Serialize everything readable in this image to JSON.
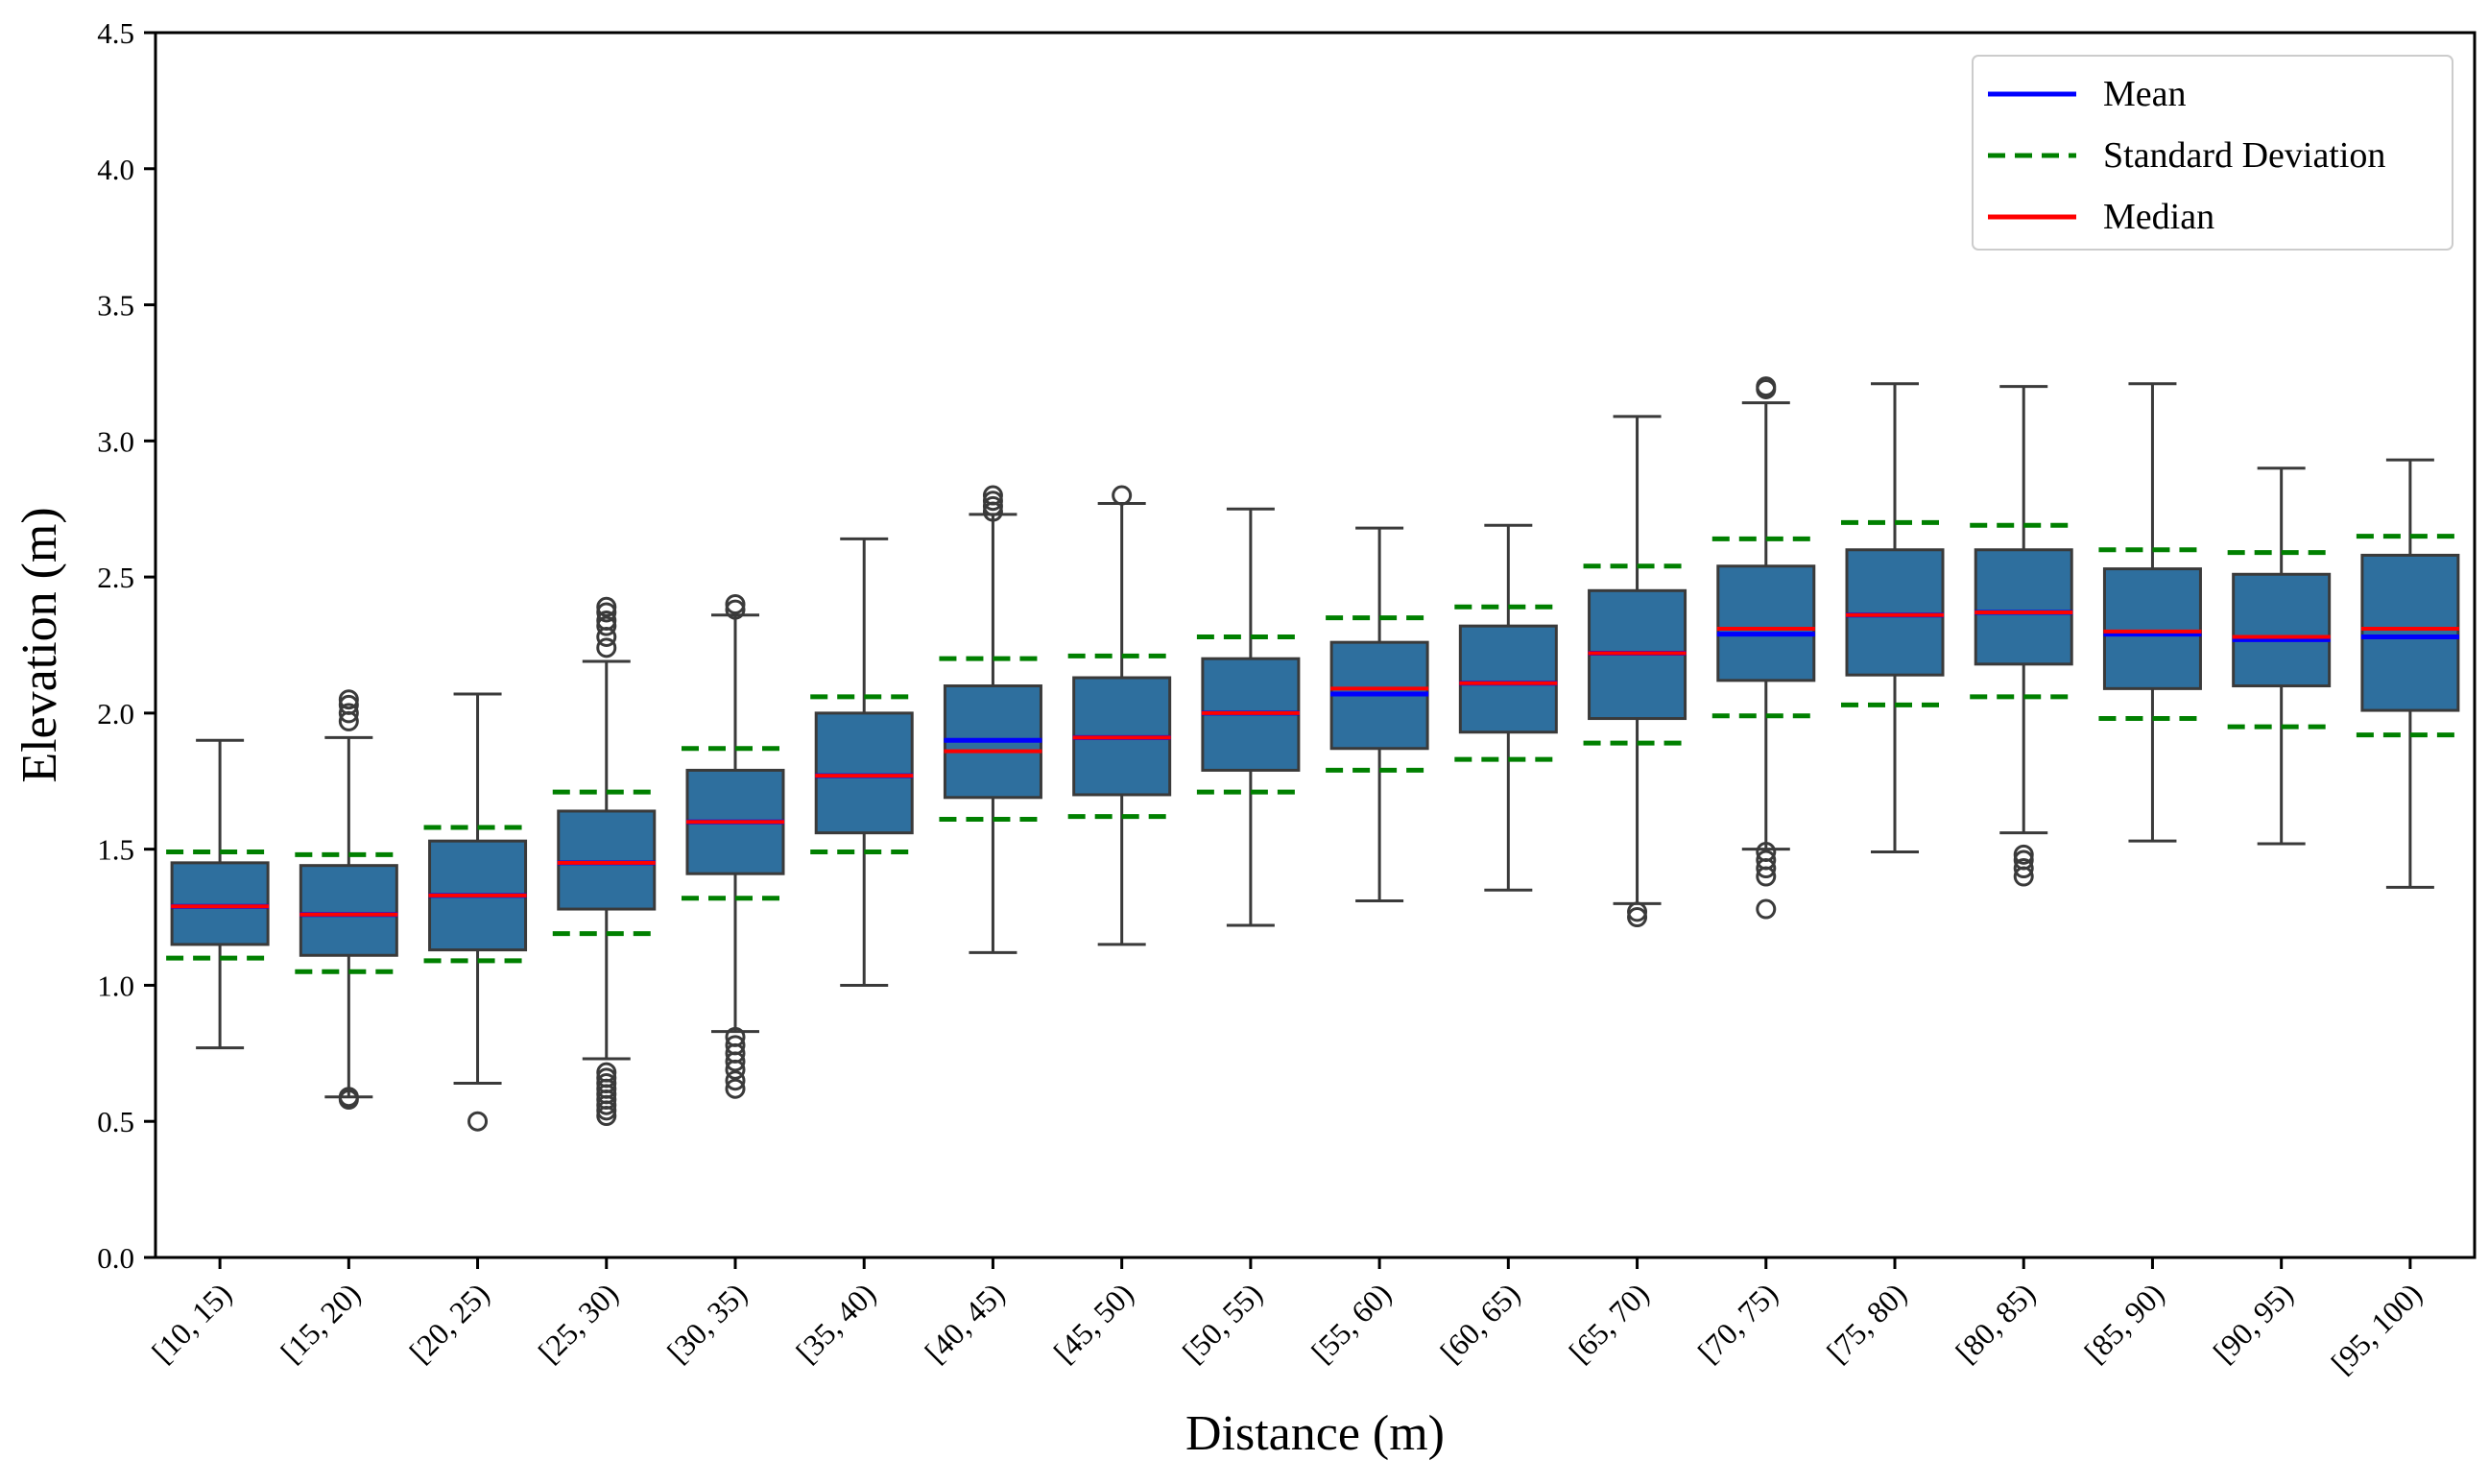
{
  "chart_data": {
    "type": "box",
    "xlabel": "Distance (m)",
    "ylabel": "Elevation (m)",
    "ylim": [
      0.0,
      4.5
    ],
    "yticks": [
      "0.0",
      "0.5",
      "1.0",
      "1.5",
      "2.0",
      "2.5",
      "3.0",
      "3.5",
      "4.0",
      "4.5"
    ],
    "legend_position": "top-right",
    "legend": [
      {
        "label": "Mean",
        "style": "solid",
        "color": "#0000ff"
      },
      {
        "label": "Standard Deviation",
        "style": "dashed",
        "color": "#008000"
      },
      {
        "label": "Median",
        "style": "solid",
        "color": "#ff0000"
      }
    ],
    "colors": {
      "box_fill": "#2e6f9e",
      "box_edge": "#3a3a3a",
      "whisker": "#3a3a3a",
      "mean": "#0000ff",
      "median": "#ff0000",
      "std": "#008000",
      "outlier": "#3a3a3a"
    },
    "categories": [
      "[10, 15)",
      "[15, 20)",
      "[20, 25)",
      "[25, 30)",
      "[30, 35)",
      "[35, 40)",
      "[40, 45)",
      "[45, 50)",
      "[50, 55)",
      "[55, 60)",
      "[60, 65)",
      "[65, 70)",
      "[70, 75)",
      "[75, 80)",
      "[80, 85)",
      "[85, 90)",
      "[90, 95)",
      "[95, 100)"
    ],
    "boxes": [
      {
        "q1": 1.15,
        "q3": 1.45,
        "median": 1.29,
        "mean": 1.29,
        "whisker_low": 0.77,
        "whisker_high": 1.9,
        "std_low": 1.1,
        "std_high": 1.49,
        "outliers": []
      },
      {
        "q1": 1.11,
        "q3": 1.44,
        "median": 1.26,
        "mean": 1.26,
        "whisker_low": 0.59,
        "whisker_high": 1.91,
        "std_low": 1.05,
        "std_high": 1.48,
        "outliers": [
          0.58,
          0.59,
          1.97,
          2.0,
          2.03,
          2.05
        ]
      },
      {
        "q1": 1.13,
        "q3": 1.53,
        "median": 1.33,
        "mean": 1.33,
        "whisker_low": 0.64,
        "whisker_high": 2.07,
        "std_low": 1.09,
        "std_high": 1.58,
        "outliers": [
          0.5
        ]
      },
      {
        "q1": 1.28,
        "q3": 1.64,
        "median": 1.45,
        "mean": 1.45,
        "whisker_low": 0.73,
        "whisker_high": 2.19,
        "std_low": 1.19,
        "std_high": 1.71,
        "outliers": [
          0.52,
          0.54,
          0.56,
          0.58,
          0.6,
          0.62,
          0.64,
          0.66,
          0.68,
          2.24,
          2.28,
          2.32,
          2.34,
          2.37,
          2.39
        ]
      },
      {
        "q1": 1.41,
        "q3": 1.79,
        "median": 1.6,
        "mean": 1.6,
        "whisker_low": 0.83,
        "whisker_high": 2.36,
        "std_low": 1.32,
        "std_high": 1.87,
        "outliers": [
          0.62,
          0.65,
          0.69,
          0.72,
          0.75,
          0.78,
          0.81,
          2.38,
          2.4
        ]
      },
      {
        "q1": 1.56,
        "q3": 2.0,
        "median": 1.77,
        "mean": 1.77,
        "whisker_low": 1.0,
        "whisker_high": 2.64,
        "std_low": 1.49,
        "std_high": 2.06,
        "outliers": []
      },
      {
        "q1": 1.69,
        "q3": 2.1,
        "median": 1.86,
        "mean": 1.9,
        "whisker_low": 1.12,
        "whisker_high": 2.73,
        "std_low": 1.61,
        "std_high": 2.2,
        "outliers": [
          2.74,
          2.76,
          2.78,
          2.8
        ]
      },
      {
        "q1": 1.7,
        "q3": 2.13,
        "median": 1.91,
        "mean": 1.91,
        "whisker_low": 1.15,
        "whisker_high": 2.77,
        "std_low": 1.62,
        "std_high": 2.21,
        "outliers": [
          2.8
        ]
      },
      {
        "q1": 1.79,
        "q3": 2.2,
        "median": 2.0,
        "mean": 2.0,
        "whisker_low": 1.22,
        "whisker_high": 2.75,
        "std_low": 1.71,
        "std_high": 2.28,
        "outliers": []
      },
      {
        "q1": 1.87,
        "q3": 2.26,
        "median": 2.09,
        "mean": 2.07,
        "whisker_low": 1.31,
        "whisker_high": 2.68,
        "std_low": 1.79,
        "std_high": 2.35,
        "outliers": []
      },
      {
        "q1": 1.93,
        "q3": 2.32,
        "median": 2.11,
        "mean": 2.11,
        "whisker_low": 1.35,
        "whisker_high": 2.69,
        "std_low": 1.83,
        "std_high": 2.39,
        "outliers": []
      },
      {
        "q1": 1.98,
        "q3": 2.45,
        "median": 2.22,
        "mean": 2.22,
        "whisker_low": 1.3,
        "whisker_high": 3.09,
        "std_low": 1.89,
        "std_high": 2.54,
        "outliers": [
          1.25,
          1.27
        ]
      },
      {
        "q1": 2.12,
        "q3": 2.54,
        "median": 2.31,
        "mean": 2.29,
        "whisker_low": 1.5,
        "whisker_high": 3.14,
        "std_low": 1.99,
        "std_high": 2.64,
        "outliers": [
          1.28,
          1.4,
          1.43,
          1.46,
          1.49,
          3.19,
          3.2
        ]
      },
      {
        "q1": 2.14,
        "q3": 2.6,
        "median": 2.36,
        "mean": 2.36,
        "whisker_low": 1.49,
        "whisker_high": 3.21,
        "std_low": 2.03,
        "std_high": 2.7,
        "outliers": []
      },
      {
        "q1": 2.18,
        "q3": 2.6,
        "median": 2.37,
        "mean": 2.37,
        "whisker_low": 1.56,
        "whisker_high": 3.2,
        "std_low": 2.06,
        "std_high": 2.69,
        "outliers": [
          1.4,
          1.43,
          1.46,
          1.48
        ]
      },
      {
        "q1": 2.09,
        "q3": 2.53,
        "median": 2.3,
        "mean": 2.29,
        "whisker_low": 1.53,
        "whisker_high": 3.21,
        "std_low": 1.98,
        "std_high": 2.6,
        "outliers": []
      },
      {
        "q1": 2.1,
        "q3": 2.51,
        "median": 2.28,
        "mean": 2.27,
        "whisker_low": 1.52,
        "whisker_high": 2.9,
        "std_low": 1.95,
        "std_high": 2.59,
        "outliers": []
      },
      {
        "q1": 2.01,
        "q3": 2.58,
        "median": 2.31,
        "mean": 2.28,
        "whisker_low": 1.36,
        "whisker_high": 2.93,
        "std_low": 1.92,
        "std_high": 2.65,
        "outliers": []
      }
    ]
  }
}
